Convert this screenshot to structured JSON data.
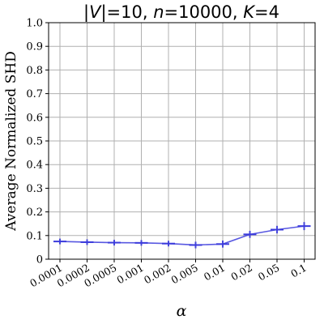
{
  "chart_data": {
    "type": "line",
    "title": "|V|=10, n=10000, K=4",
    "title_parts": [
      {
        "text": "|",
        "italic": false
      },
      {
        "text": "V",
        "italic": true
      },
      {
        "text": "|=10, ",
        "italic": false
      },
      {
        "text": "n",
        "italic": true
      },
      {
        "text": "=10000, ",
        "italic": false
      },
      {
        "text": "K",
        "italic": true
      },
      {
        "text": "=4",
        "italic": false
      }
    ],
    "xlabel": "α",
    "ylabel": "Average Normalized SHD",
    "categories": [
      "0.0001",
      "0.0002",
      "0.0005",
      "0.001",
      "0.002",
      "0.005",
      "0.01",
      "0.02",
      "0.05",
      "0.1"
    ],
    "series": [
      {
        "values": [
          0.075,
          0.072,
          0.07,
          0.069,
          0.066,
          0.06,
          0.064,
          0.105,
          0.125,
          0.14
        ],
        "error": [
          0.012,
          0.012,
          0.012,
          0.012,
          0.012,
          0.014,
          0.015,
          0.015,
          0.016,
          0.017
        ],
        "color": "#3b3bdc",
        "marker": "+"
      }
    ],
    "ylim": [
      0,
      1.0
    ],
    "yticks": [
      "0",
      "0.1",
      "0.2",
      "0.3",
      "0.4",
      "0.5",
      "0.6",
      "0.7",
      "0.8",
      "0.9",
      "1.0"
    ],
    "grid": true,
    "legend": "none"
  }
}
